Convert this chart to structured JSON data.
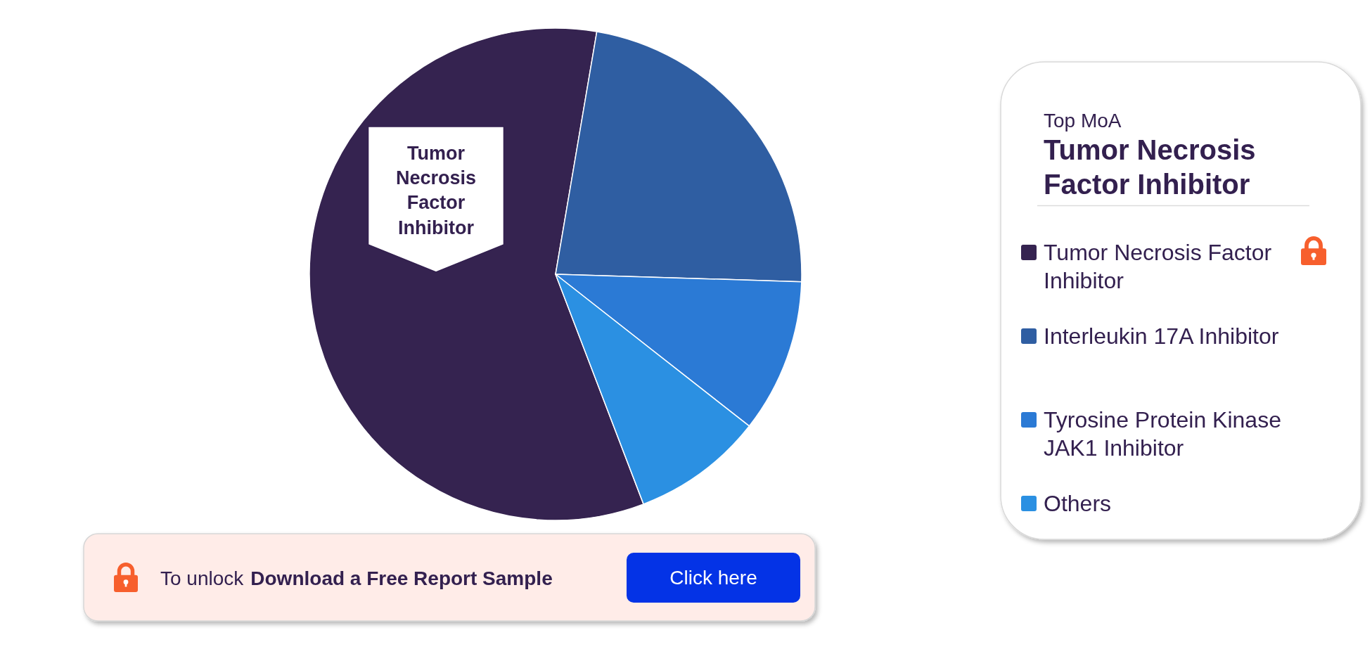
{
  "chart_data": {
    "type": "pie",
    "legend_title": "Top MoA",
    "categories": [
      "Tumor Necrosis Factor Inhibitor",
      "Interleukin 17A Inhibitor",
      "Tyrosine Protein Kinase JAK1 Inhibitor",
      "Others"
    ],
    "values": [
      58.5,
      22.8,
      10.1,
      8.6
    ],
    "colors": [
      "#352350",
      "#2f5ea2",
      "#2b7ad5",
      "#2b90e2"
    ],
    "legend": "right",
    "annotations": [
      "Tumor Necrosis Factor Inhibitor",
      "Tumor Necrosis Factor Inhibitor",
      "To unlock",
      "Download a Free Report Sample",
      "Click here"
    ]
  }
}
